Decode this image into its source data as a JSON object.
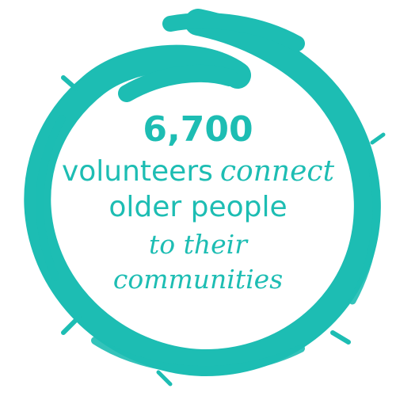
{
  "colors": {
    "accent": "#1dbdb3",
    "background": "#ffffff"
  },
  "graphic": {
    "ring": "brush-stroke-circle"
  },
  "stat": {
    "figure": "6,700",
    "line2_part1": "volunteers",
    "line2_part2": "connect",
    "line3": "older people",
    "line4": "to their",
    "line5": "communities"
  }
}
